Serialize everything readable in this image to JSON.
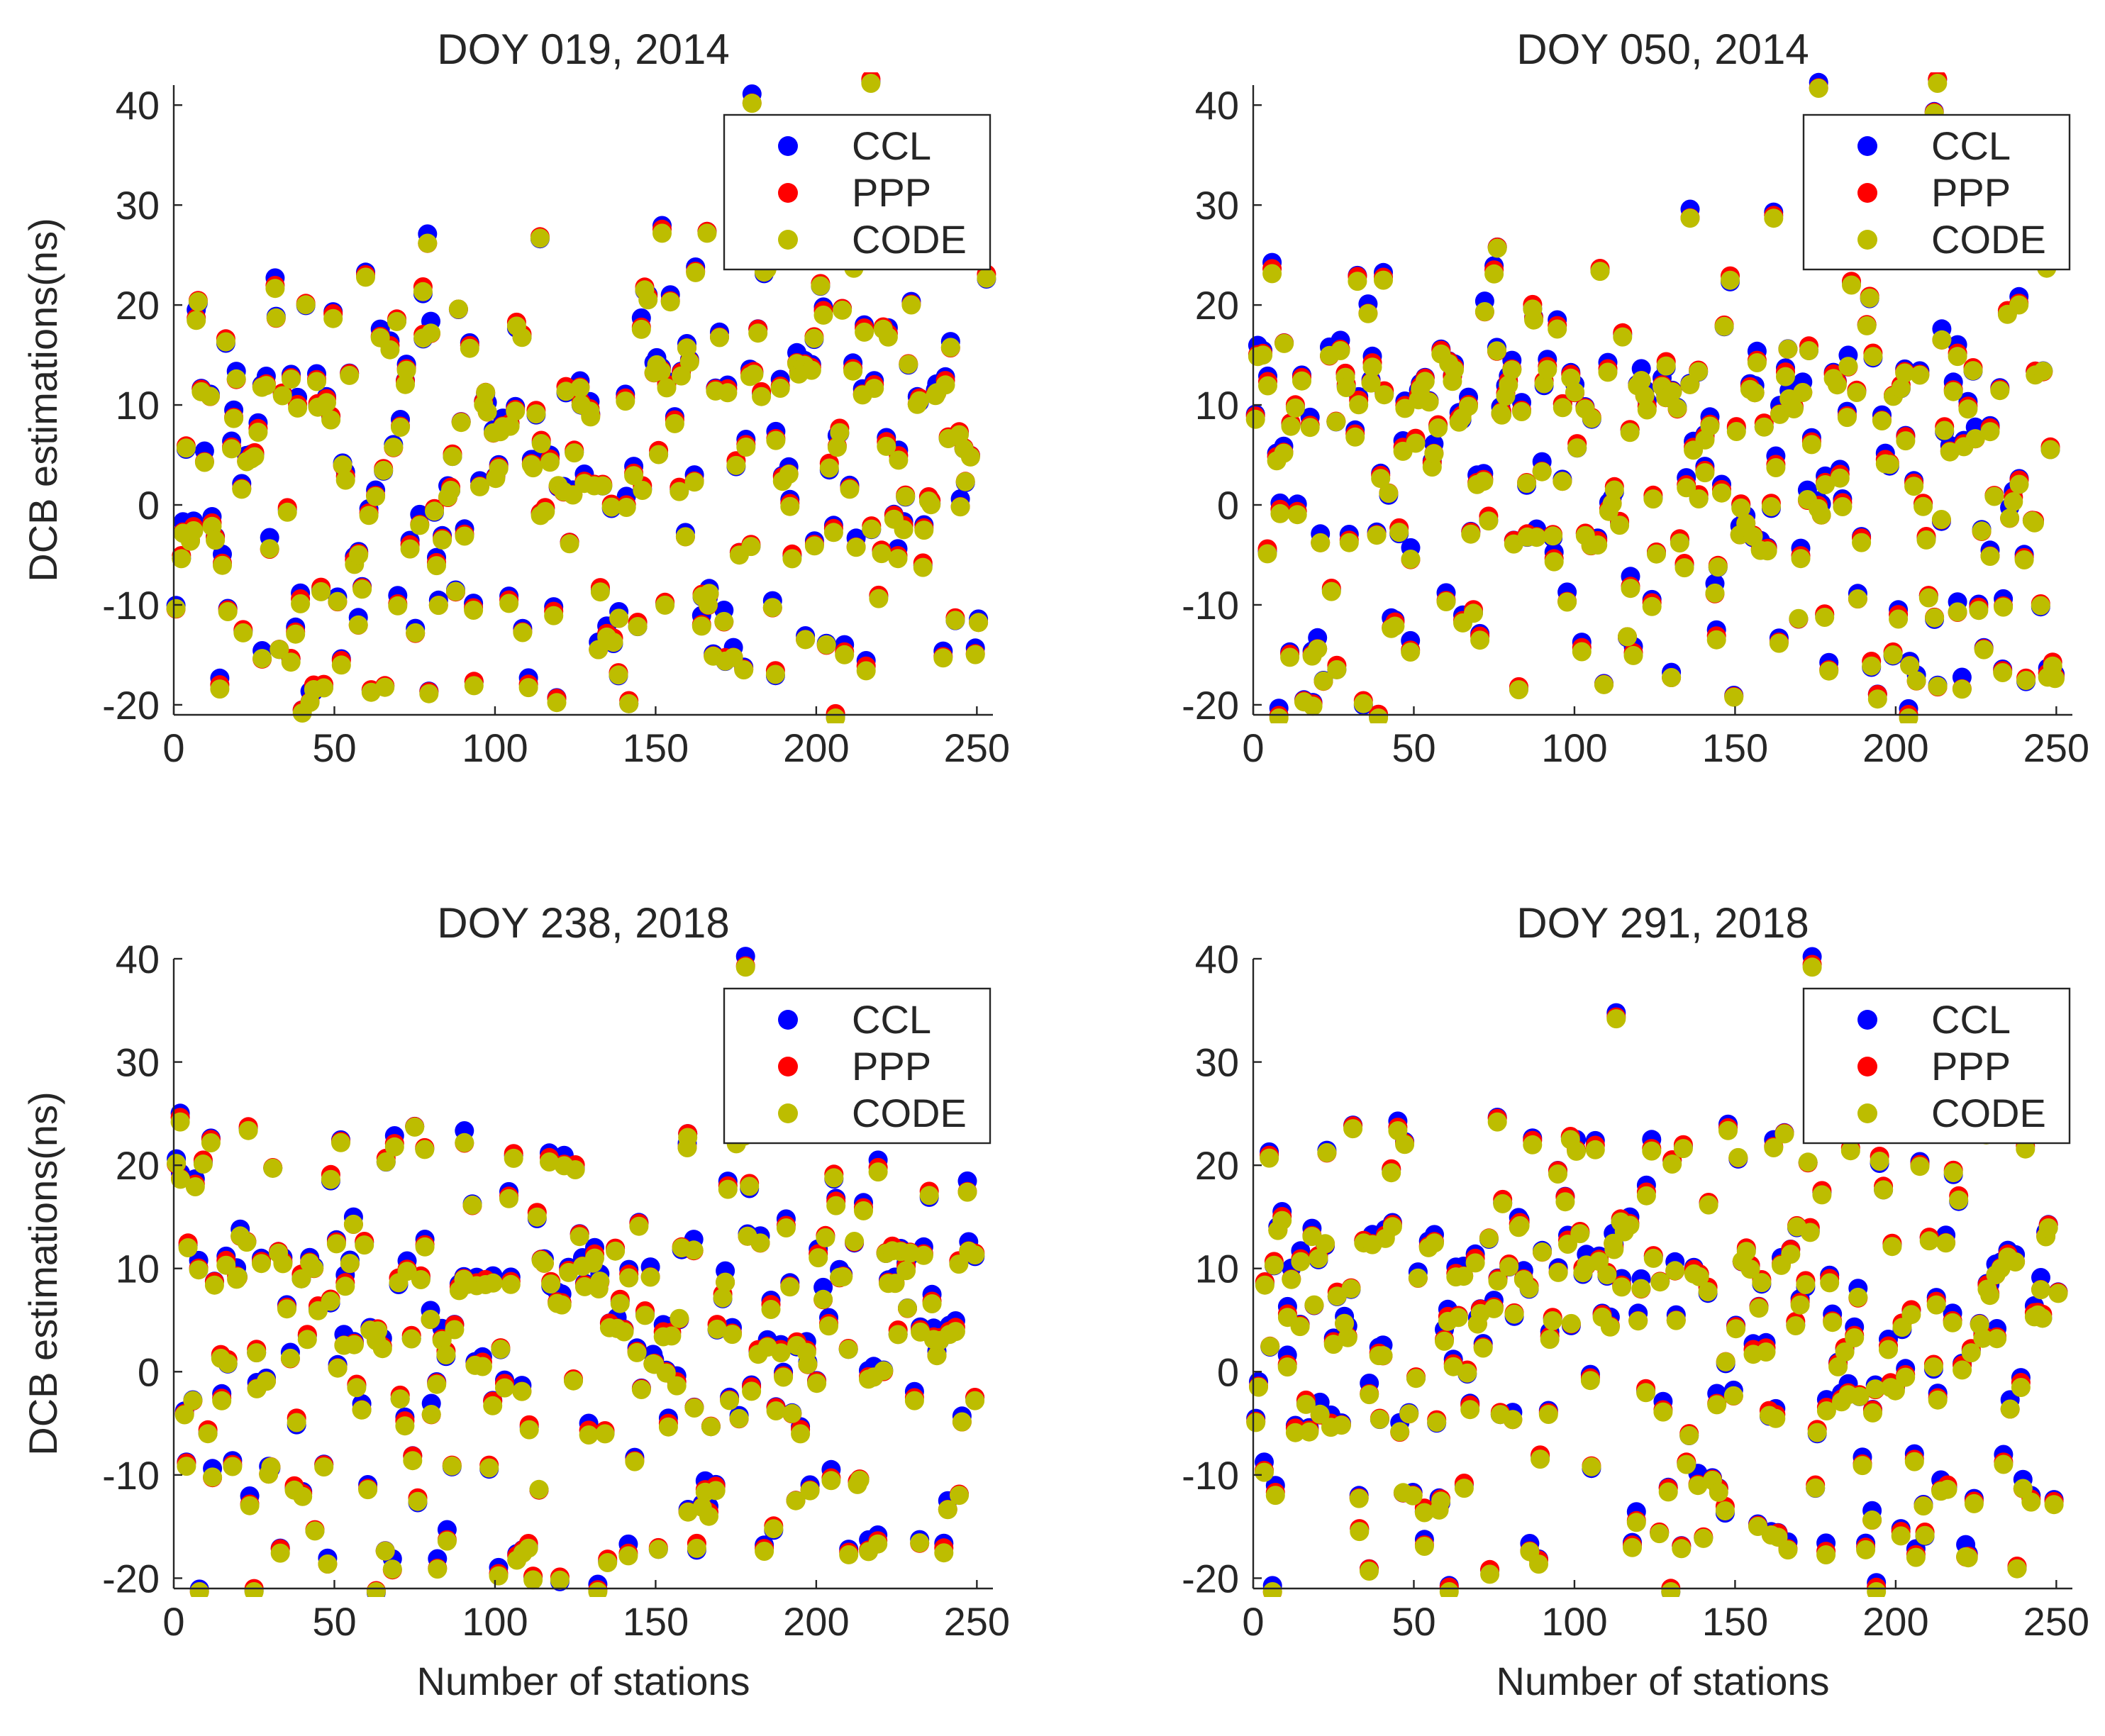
{
  "figure": {
    "ylabel": "DCB estimations(ns)",
    "xlabel": "Number of stations",
    "series_colors": {
      "CCL": "#0000ff",
      "PPP": "#ff0000",
      "CODE": "#bdbd00"
    }
  },
  "chart_data": [
    {
      "type": "scatter",
      "title": "DOY 019, 2014",
      "xlabel": "",
      "ylabel": "DCB estimations(ns)",
      "xlim": [
        0,
        255
      ],
      "ylim": [
        -21,
        42
      ],
      "xticks": [
        0,
        50,
        100,
        150,
        200,
        250
      ],
      "yticks": [
        -20,
        -10,
        0,
        10,
        20,
        30,
        40
      ],
      "legend": [
        "CCL",
        "PPP",
        "CODE"
      ],
      "legend_position": "top-right",
      "seed": 19,
      "n_points": 250,
      "extremes": [
        [
          180,
          40.5
        ],
        [
          217,
          42.5
        ],
        [
          166,
          27.5
        ],
        [
          152,
          27.5
        ],
        [
          40,
          -20.5
        ],
        [
          206,
          -21
        ],
        [
          79,
          26.5
        ],
        [
          114,
          27
        ],
        [
          253,
          23
        ]
      ]
    },
    {
      "type": "scatter",
      "title": "DOY 050, 2014",
      "xlabel": "",
      "ylabel": "",
      "xlim": [
        0,
        255
      ],
      "ylim": [
        -21,
        42
      ],
      "xticks": [
        0,
        50,
        100,
        150,
        200,
        250
      ],
      "yticks": [
        -20,
        -10,
        0,
        10,
        20,
        30,
        40
      ],
      "legend": [
        "CCL",
        "PPP",
        "CODE"
      ],
      "legend_position": "top-right",
      "seed": 50,
      "n_points": 248,
      "extremes": [
        [
          176,
          42
        ],
        [
          213,
          42.5
        ],
        [
          212,
          39.5
        ],
        [
          136,
          29
        ],
        [
          162,
          29
        ],
        [
          8,
          -21
        ],
        [
          39,
          -21
        ],
        [
          204,
          -21
        ],
        [
          76,
          26
        ],
        [
          247,
          24
        ]
      ]
    },
    {
      "type": "scatter",
      "title": "DOY 238, 2018",
      "xlabel": "Number of stations",
      "ylabel": "DCB estimations(ns)",
      "xlim": [
        0,
        255
      ],
      "ylim": [
        -21,
        40
      ],
      "xticks": [
        0,
        50,
        100,
        150,
        200,
        250
      ],
      "yticks": [
        -20,
        -10,
        0,
        10,
        20,
        30,
        40
      ],
      "legend": [
        "CCL",
        "PPP",
        "CODE"
      ],
      "legend_position": "top-right",
      "seed": 238,
      "n_points": 248,
      "extremes": [
        [
          178,
          39.5
        ],
        [
          2,
          24.5
        ],
        [
          75,
          24
        ],
        [
          8,
          -21
        ],
        [
          25,
          -21
        ],
        [
          63,
          -21
        ],
        [
          132,
          -21
        ],
        [
          52,
          22.5
        ],
        [
          160,
          23
        ]
      ]
    },
    {
      "type": "scatter",
      "title": "DOY 291, 2018",
      "xlabel": "Number of stations",
      "ylabel": "",
      "xlim": [
        0,
        255
      ],
      "ylim": [
        -21,
        40
      ],
      "xticks": [
        0,
        50,
        100,
        150,
        200,
        250
      ],
      "yticks": [
        -20,
        -10,
        0,
        10,
        20,
        30,
        40
      ],
      "legend": [
        "CCL",
        "PPP",
        "CODE"
      ],
      "legend_position": "top-right",
      "seed": 291,
      "n_points": 246,
      "extremes": [
        [
          174,
          39.5
        ],
        [
          113,
          34.5
        ],
        [
          76,
          24.5
        ],
        [
          6,
          -21
        ],
        [
          61,
          -21
        ],
        [
          130,
          -21
        ],
        [
          194,
          -21
        ],
        [
          5,
          21
        ],
        [
          162,
          22
        ]
      ]
    }
  ]
}
